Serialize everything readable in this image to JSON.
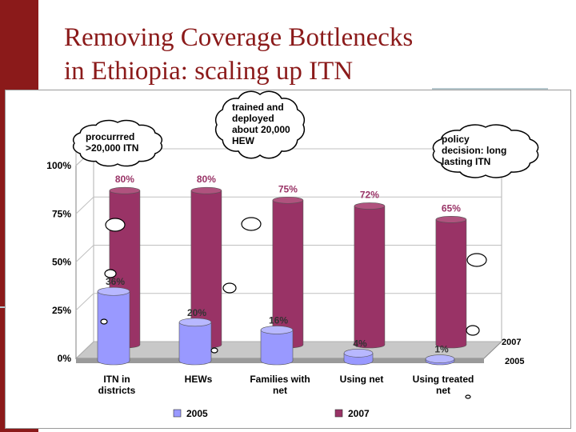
{
  "slide": {
    "title_line1": "Removing Coverage Bottlenecks",
    "title_line2": "in Ethiopia: scaling up ITN",
    "accent_color": "#8b1a1a"
  },
  "chart_data": {
    "type": "bar",
    "categories": [
      "ITN in districts",
      "HEWs",
      "Families with net",
      "Using net",
      "Using treated net"
    ],
    "series": [
      {
        "name": "2005",
        "values": [
          36,
          20,
          16,
          4,
          1
        ],
        "color": "#9999ff"
      },
      {
        "name": "2007",
        "values": [
          80,
          80,
          75,
          72,
          65
        ],
        "color": "#993366"
      }
    ],
    "ylim": [
      0,
      100
    ],
    "yticks": [
      "0%",
      "25%",
      "50%",
      "75%",
      "100%"
    ],
    "value_suffix": "%",
    "depth_labels": [
      "2007",
      "2005"
    ],
    "legend_position": "bottom",
    "grid": true
  },
  "callouts": [
    {
      "id": "procured",
      "lines": [
        "procurrred",
        ">20,000 ITN"
      ]
    },
    {
      "id": "hew",
      "lines": [
        "trained and",
        "deployed",
        "about 20,000",
        "HEW"
      ]
    },
    {
      "id": "policy",
      "lines": [
        "policy",
        "decision: long",
        "lasting ITN"
      ]
    }
  ]
}
